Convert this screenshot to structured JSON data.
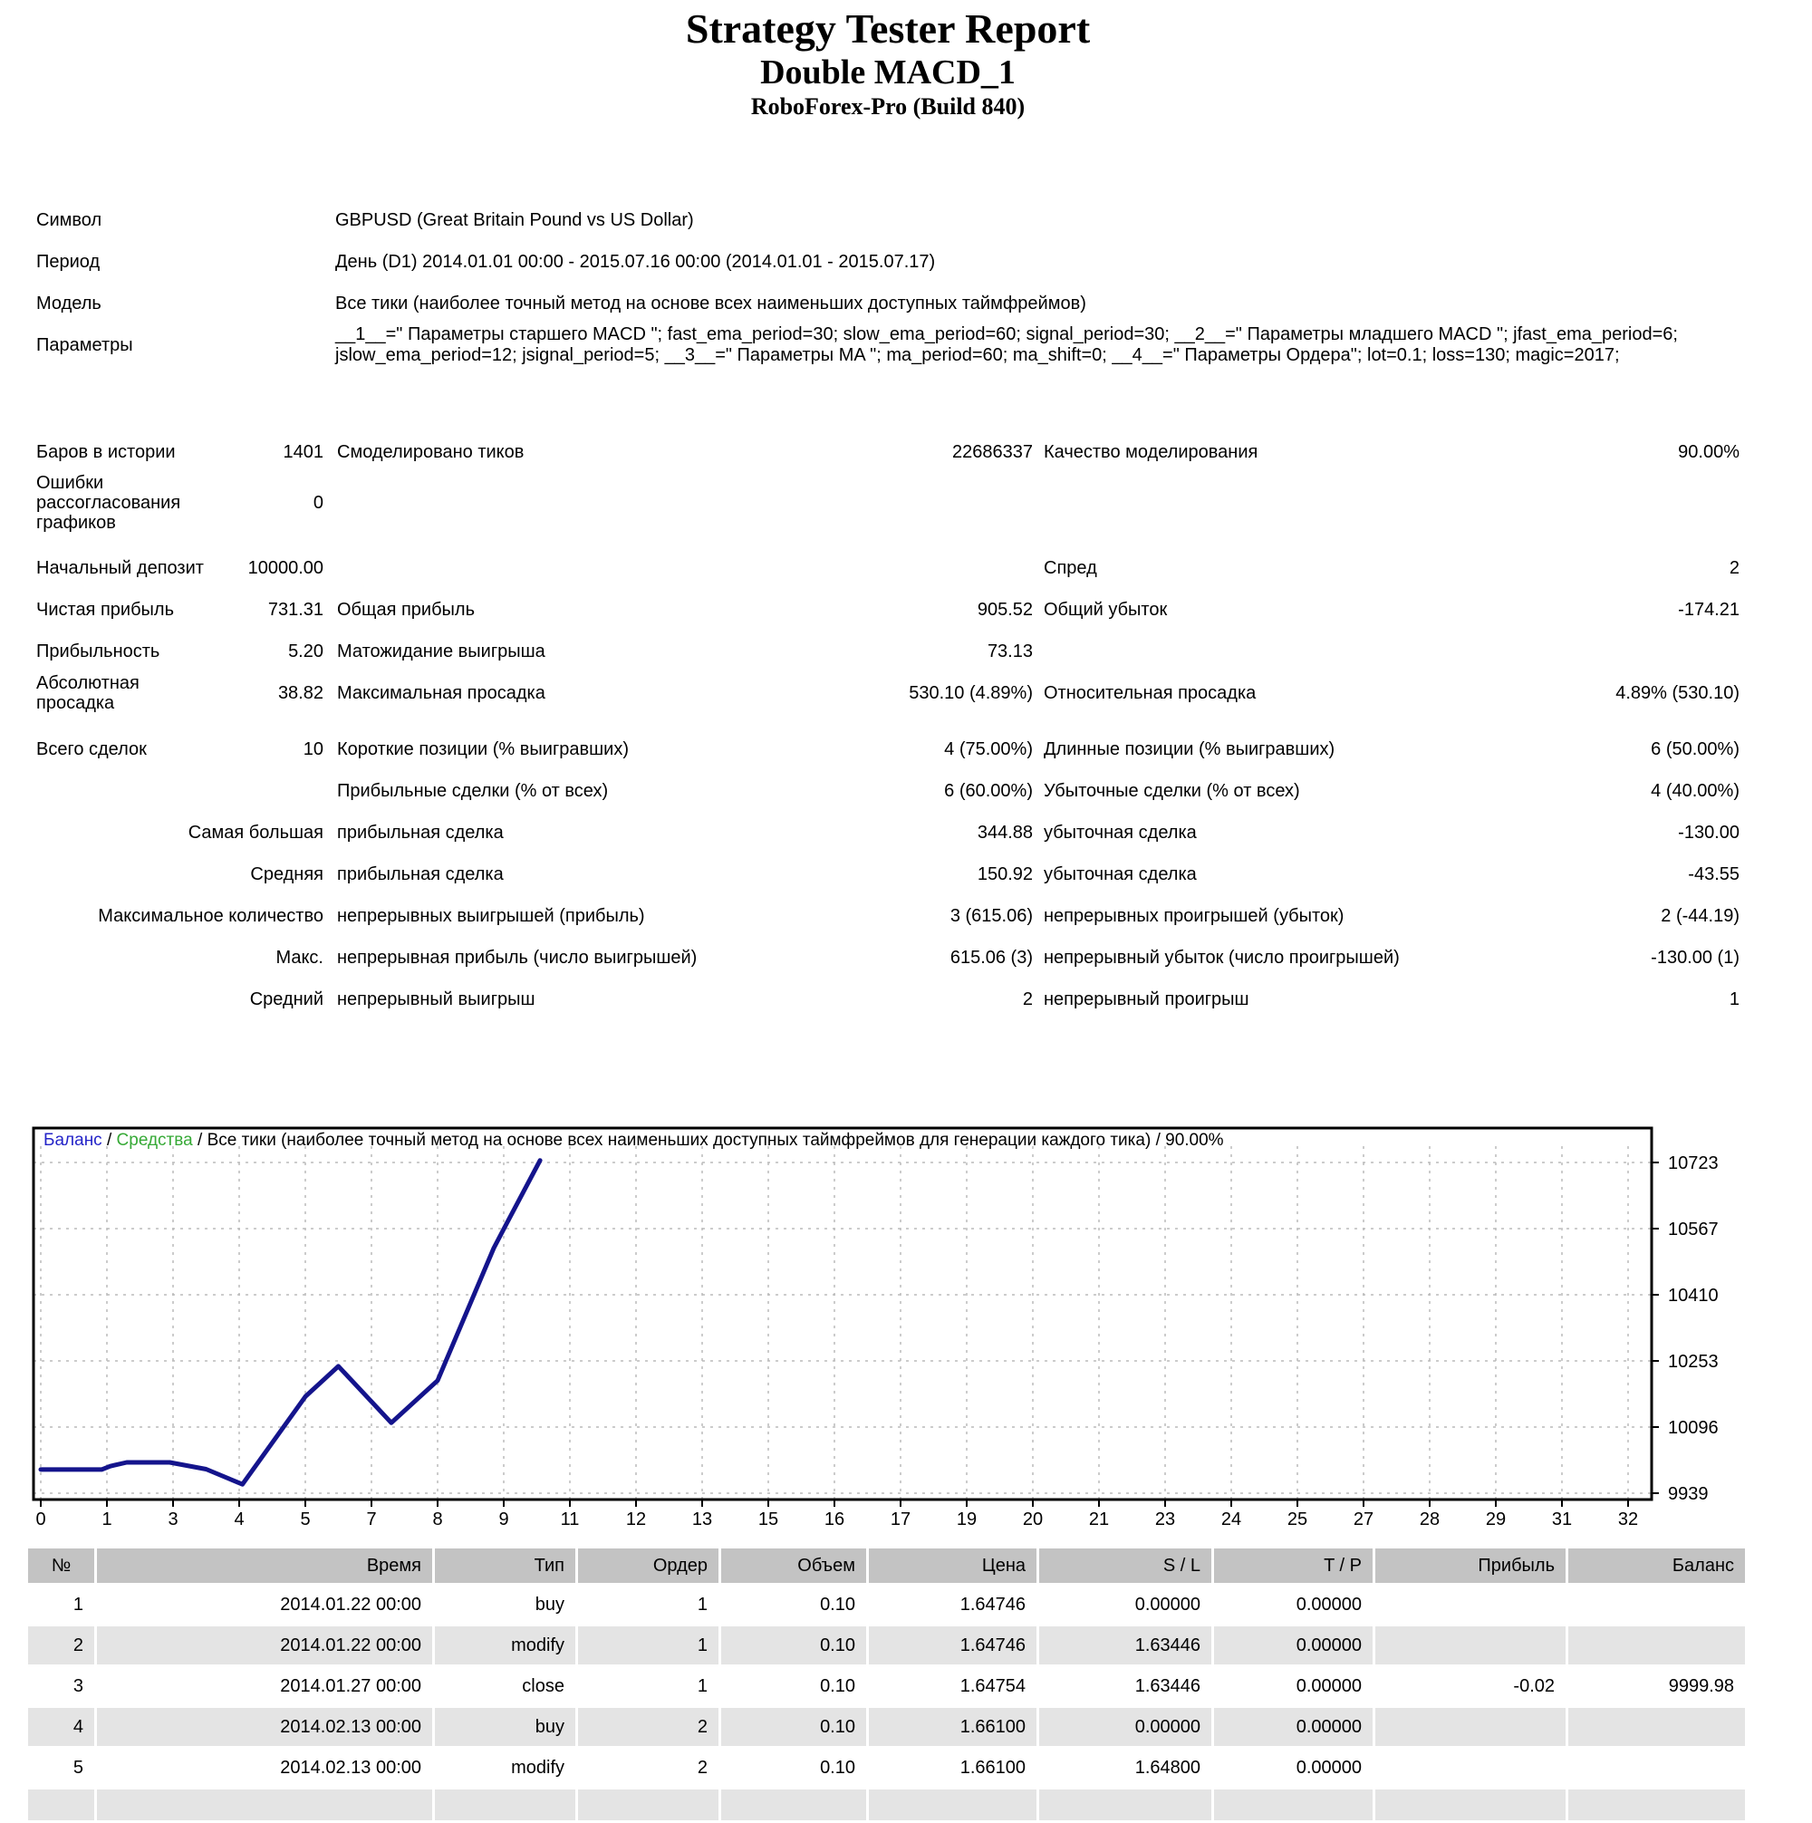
{
  "colors": {
    "legend_balance": "#2424C8",
    "legend_equity": "#36A936",
    "line": "#14148C",
    "grid": "#BBBBBB",
    "table_header_bg": "#C3C3C3",
    "table_alt_bg": "#E4E4E4"
  },
  "title": {
    "main": "Strategy Tester Report",
    "expert": "Double MACD_1",
    "server": "RoboForex-Pro (Build 840)"
  },
  "info": [
    {
      "label": "Символ",
      "value": "GBPUSD (Great Britain Pound vs US Dollar)"
    },
    {
      "label": "Период",
      "value": "День (D1) 2014.01.01 00:00 - 2015.07.16 00:00 (2014.01.01 - 2015.07.17)"
    },
    {
      "label": "Модель",
      "value": "Все тики (наиболее точный метод на основе всех наименьших доступных таймфреймов)"
    },
    {
      "label": "Параметры",
      "value": "__1__=\" Параметры старшего MACD \"; fast_ema_period=30; slow_ema_period=60; signal_period=30; __2__=\" Параметры младшего MACD \"; jfast_ema_period=6; jslow_ema_period=12; jsignal_period=5; __3__=\" Параметры MA \"; ma_period=60; ma_shift=0; __4__=\" Параметры Ордера\"; lot=0.1; loss=130; magic=2017;"
    }
  ],
  "stats": {
    "sections": [
      {
        "rows": [
          {
            "l1": "Баров в истории",
            "v1": "1401",
            "l2": "Смоделировано тиков",
            "v2": "22686337",
            "l3": "Качество моделирования",
            "v3": "90.00%"
          },
          {
            "l1": "Ошибки рассогласования графиков",
            "v1": "0",
            "l2": "",
            "v2": "",
            "l3": "",
            "v3": ""
          }
        ]
      },
      {
        "rows": [
          {
            "l1": "Начальный депозит",
            "v1": "10000.00",
            "l2": "",
            "v2": "",
            "l3": "Спред",
            "v3": "2"
          },
          {
            "l1": "Чистая прибыль",
            "v1": "731.31",
            "l2": "Общая прибыль",
            "v2": "905.52",
            "l3": "Общий убыток",
            "v3": "-174.21"
          },
          {
            "l1": "Прибыльность",
            "v1": "5.20",
            "l2": "Матожидание выигрыша",
            "v2": "73.13",
            "l3": "",
            "v3": ""
          },
          {
            "l1": "Абсолютная просадка",
            "v1": "38.82",
            "l2": "Максимальная просадка",
            "v2": "530.10 (4.89%)",
            "l3": "Относительная просадка",
            "v3": "4.89% (530.10)"
          }
        ]
      },
      {
        "rows": [
          {
            "l1": "Всего сделок",
            "v1": "10",
            "l2": "Короткие позиции (% выигравших)",
            "v2": "4 (75.00%)",
            "l3": "Длинные позиции (% выигравших)",
            "v3": "6 (50.00%)"
          },
          {
            "l1": "",
            "v1": "",
            "l2": "Прибыльные сделки (% от всех)",
            "v2": "6 (60.00%)",
            "l3": "Убыточные сделки (% от всех)",
            "v3": "4 (40.00%)"
          },
          {
            "l1": "Самая большая",
            "v1": "",
            "l2": "прибыльная сделка",
            "v2": "344.88",
            "l3": "убыточная сделка",
            "v3": "-130.00"
          },
          {
            "l1": "Средняя",
            "v1": "",
            "l2": "прибыльная сделка",
            "v2": "150.92",
            "l3": "убыточная сделка",
            "v3": "-43.55"
          },
          {
            "l1": "Максимальное количество",
            "v1": "",
            "l2": "непрерывных выигрышей (прибыль)",
            "v2": "3 (615.06)",
            "l3": "непрерывных проигрышей (убыток)",
            "v3": "2 (-44.19)"
          },
          {
            "l1": "Макс.",
            "v1": "",
            "l2": "непрерывная прибыль (число выигрышей)",
            "v2": "615.06 (3)",
            "l3": "непрерывный убыток (число проигрышей)",
            "v3": "-130.00 (1)"
          },
          {
            "l1": "Средний",
            "v1": "",
            "l2": "непрерывный выигрыш",
            "v2": "2",
            "l3": "непрерывный проигрыш",
            "v3": "1"
          }
        ]
      }
    ]
  },
  "chart_data": {
    "type": "line",
    "legend": {
      "balance": "Баланс",
      "equity": "Средства",
      "separator": " / ",
      "model_text": "Все тики (наиболее точный метод на основе всех наименьших доступных таймфреймов для генерации каждого тика) / 90.00%"
    },
    "xlabel": "",
    "ylabel": "",
    "grid": true,
    "legend_position": "top-left",
    "y_ticks": [
      10723,
      10567,
      10410,
      10253,
      10096,
      9939
    ],
    "x_ticks": [
      "0",
      "1",
      "3",
      "4",
      "5",
      "7",
      "8",
      "9",
      "11",
      "12",
      "13",
      "15",
      "16",
      "17",
      "19",
      "20",
      "21",
      "23",
      "24",
      "25",
      "27",
      "28",
      "29",
      "31",
      "32"
    ],
    "ylim": [
      9924,
      10800
    ],
    "x_unit": "trade-tick-index",
    "series": [
      {
        "name": "Баланс",
        "points": [
          [
            0,
            9995
          ],
          [
            0.92,
            9995
          ],
          [
            1.05,
            10003
          ],
          [
            1.3,
            10012
          ],
          [
            1.95,
            10012
          ],
          [
            2.5,
            9996
          ],
          [
            3.05,
            9960
          ],
          [
            4.0,
            10168
          ],
          [
            4.5,
            10240
          ],
          [
            5.3,
            10106
          ],
          [
            6.0,
            10206
          ],
          [
            6.85,
            10520
          ],
          [
            7.05,
            10580
          ],
          [
            7.55,
            10728
          ]
        ]
      }
    ]
  },
  "trades": {
    "headers": [
      "№",
      "Время",
      "Тип",
      "Ордер",
      "Объем",
      "Цена",
      "S / L",
      "T / P",
      "Прибыль",
      "Баланс"
    ],
    "rows": [
      [
        "1",
        "2014.01.22 00:00",
        "buy",
        "1",
        "0.10",
        "1.64746",
        "0.00000",
        "0.00000",
        "",
        ""
      ],
      [
        "2",
        "2014.01.22 00:00",
        "modify",
        "1",
        "0.10",
        "1.64746",
        "1.63446",
        "0.00000",
        "",
        ""
      ],
      [
        "3",
        "2014.01.27 00:00",
        "close",
        "1",
        "0.10",
        "1.64754",
        "1.63446",
        "0.00000",
        "-0.02",
        "9999.98"
      ],
      [
        "4",
        "2014.02.13 00:00",
        "buy",
        "2",
        "0.10",
        "1.66100",
        "0.00000",
        "0.00000",
        "",
        ""
      ],
      [
        "5",
        "2014.02.13 00:00",
        "modify",
        "2",
        "0.10",
        "1.66100",
        "1.64800",
        "0.00000",
        "",
        ""
      ],
      [
        "",
        "",
        "",
        "",
        "",
        "",
        "",
        "",
        "",
        ""
      ]
    ]
  }
}
